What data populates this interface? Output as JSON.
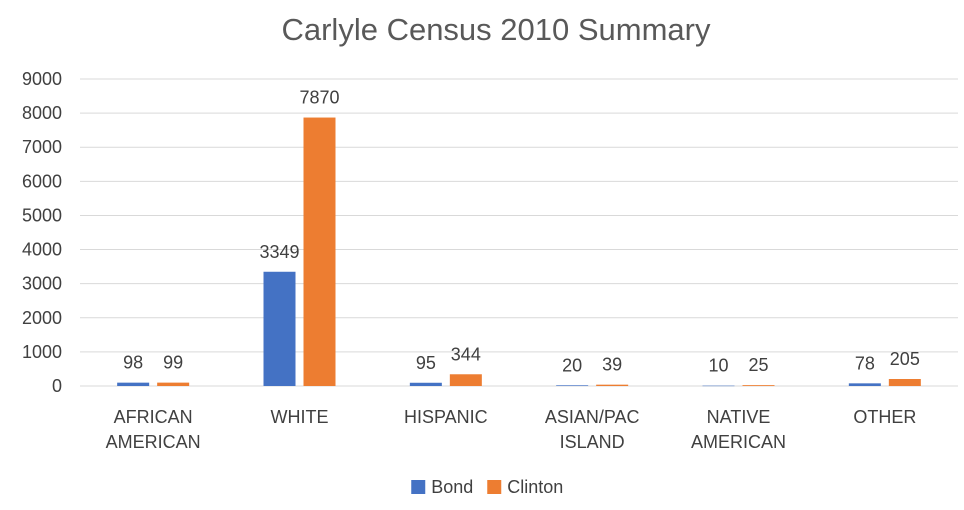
{
  "chart_data": {
    "type": "bar",
    "title": "Carlyle Census 2010 Summary",
    "xlabel": "",
    "ylabel": "",
    "ylim": [
      0,
      9000
    ],
    "yticks": [
      0,
      1000,
      2000,
      3000,
      4000,
      5000,
      6000,
      7000,
      8000,
      9000
    ],
    "categories": [
      [
        "AFRICAN",
        "AMERICAN"
      ],
      [
        "WHITE"
      ],
      [
        "HISPANIC"
      ],
      [
        "ASIAN/PAC",
        "ISLAND"
      ],
      [
        "NATIVE",
        "AMERICAN"
      ],
      [
        "OTHER"
      ]
    ],
    "series": [
      {
        "name": "Bond",
        "color": "#4472c4",
        "values": [
          98,
          3349,
          95,
          20,
          10,
          78
        ]
      },
      {
        "name": "Clinton",
        "color": "#ed7d31",
        "values": [
          99,
          7870,
          344,
          39,
          25,
          205
        ]
      }
    ],
    "grid": true,
    "legend": "bottom",
    "data_labels": true
  }
}
